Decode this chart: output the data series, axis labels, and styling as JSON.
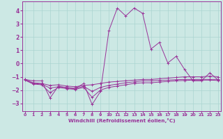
{
  "xlabel": "Windchill (Refroidissement éolien,°C)",
  "background_color": "#cce8e4",
  "grid_color": "#aad4d0",
  "line_color": "#993399",
  "x_hours": [
    0,
    1,
    2,
    3,
    4,
    5,
    6,
    7,
    8,
    9,
    10,
    11,
    12,
    13,
    14,
    15,
    16,
    17,
    18,
    19,
    20,
    21,
    22,
    23
  ],
  "series": [
    [
      -1.2,
      -1.3,
      -1.3,
      -2.6,
      -1.7,
      -1.85,
      -1.9,
      -1.5,
      -3.1,
      -2.1,
      2.5,
      4.2,
      3.6,
      4.2,
      3.8,
      1.1,
      1.6,
      0.05,
      0.55,
      -0.45,
      -1.3,
      -1.3,
      -0.7,
      -1.25
    ],
    [
      -1.2,
      -1.45,
      -1.5,
      -1.65,
      -1.6,
      -1.7,
      -1.75,
      -1.65,
      -1.6,
      -1.5,
      -1.4,
      -1.35,
      -1.3,
      -1.25,
      -1.2,
      -1.2,
      -1.15,
      -1.1,
      -1.05,
      -1.0,
      -1.0,
      -1.0,
      -0.95,
      -1.0
    ],
    [
      -1.2,
      -1.5,
      -1.55,
      -1.85,
      -1.75,
      -1.8,
      -1.88,
      -1.72,
      -2.1,
      -1.8,
      -1.65,
      -1.55,
      -1.45,
      -1.38,
      -1.3,
      -1.3,
      -1.28,
      -1.25,
      -1.22,
      -1.2,
      -1.2,
      -1.2,
      -1.2,
      -1.2
    ],
    [
      -1.25,
      -1.55,
      -1.6,
      -2.2,
      -1.8,
      -1.9,
      -1.95,
      -1.8,
      -2.55,
      -2.0,
      -1.8,
      -1.7,
      -1.6,
      -1.5,
      -1.45,
      -1.45,
      -1.4,
      -1.35,
      -1.3,
      -1.28,
      -1.25,
      -1.25,
      -1.25,
      -1.28
    ]
  ],
  "ylim": [
    -3.6,
    4.7
  ],
  "yticks": [
    -3,
    -2,
    -1,
    0,
    1,
    2,
    3,
    4
  ],
  "xtick_labels": [
    "0",
    "1",
    "2",
    "3",
    "4",
    "5",
    "6",
    "7",
    "8",
    "9",
    "10",
    "11",
    "12",
    "13",
    "14",
    "15",
    "16",
    "17",
    "18",
    "19",
    "20",
    "21",
    "22",
    "23"
  ]
}
